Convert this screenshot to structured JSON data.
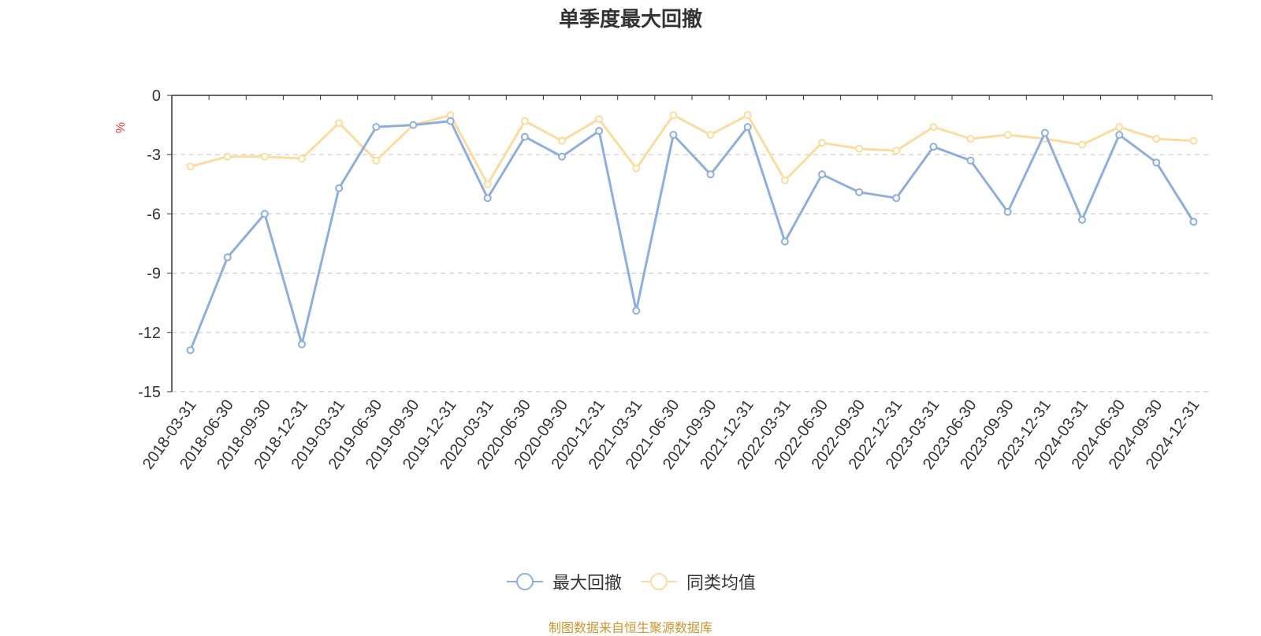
{
  "chart_data": {
    "type": "line",
    "title": "单季度最大回撤",
    "ylabel": "%",
    "ylim": [
      -15,
      0
    ],
    "yticks": [
      0,
      -3,
      -6,
      -9,
      -12,
      -15
    ],
    "grid": true,
    "legend_position": "bottom",
    "categories": [
      "2018-03-31",
      "2018-06-30",
      "2018-09-30",
      "2018-12-31",
      "2019-03-31",
      "2019-06-30",
      "2019-09-30",
      "2019-12-31",
      "2020-03-31",
      "2020-06-30",
      "2020-09-30",
      "2020-12-31",
      "2021-03-31",
      "2021-06-30",
      "2021-09-30",
      "2021-12-31",
      "2022-03-31",
      "2022-06-30",
      "2022-09-30",
      "2022-12-31",
      "2023-03-31",
      "2023-06-30",
      "2023-09-30",
      "2023-12-31",
      "2024-03-31",
      "2024-06-30",
      "2024-09-30",
      "2024-12-31"
    ],
    "series": [
      {
        "name": "最大回撤",
        "color": "#8eaedb",
        "values": [
          -12.9,
          -8.2,
          -6.0,
          -12.6,
          -4.7,
          -1.6,
          -1.5,
          -1.3,
          -5.2,
          -2.1,
          -3.1,
          -1.8,
          -10.9,
          -2.0,
          -4.0,
          -1.6,
          -7.4,
          -4.0,
          -4.9,
          -5.2,
          -2.6,
          -3.3,
          -5.9,
          -1.9,
          -6.3,
          -2.0,
          -3.4,
          -6.4
        ]
      },
      {
        "name": "同类均值",
        "color": "#fbdc9e",
        "values": [
          -3.6,
          -3.1,
          -3.1,
          -3.2,
          -1.4,
          -3.3,
          -1.5,
          -1.0,
          -4.5,
          -1.3,
          -2.3,
          -1.2,
          -3.7,
          -1.0,
          -2.0,
          -1.0,
          -4.3,
          -2.4,
          -2.7,
          -2.8,
          -1.6,
          -2.2,
          -2.0,
          -2.2,
          -2.5,
          -1.6,
          -2.2,
          -2.3
        ]
      }
    ]
  },
  "colors": {
    "axis": "#333333",
    "grid": "#cccccc",
    "ylabel": "#e8383d",
    "source": "#c8962e"
  },
  "source_note": "制图数据来自恒生聚源数据库"
}
